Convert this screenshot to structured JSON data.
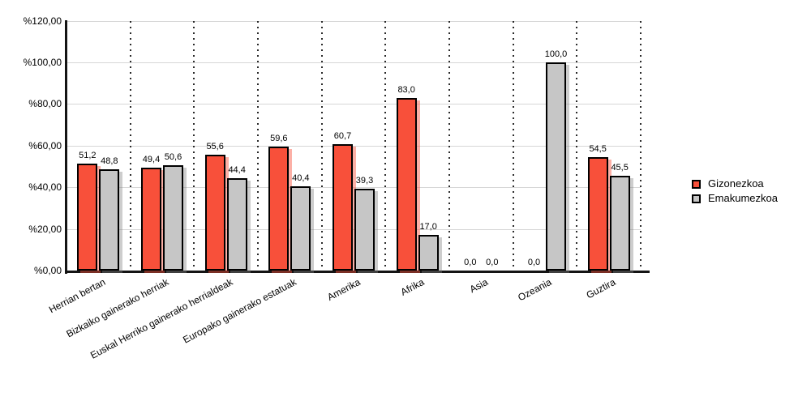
{
  "chart_data": {
    "type": "bar",
    "title": "",
    "xlabel": "",
    "ylabel": "",
    "categories": [
      "Herrian bertan",
      "Bizkaiko gainerako herriak",
      "Euskal Herriko gainerako herrialdeak",
      "Europako gainerako estatuak",
      "Amerika",
      "Afrika",
      "Asia",
      "Ozeania",
      "Guztira"
    ],
    "series": [
      {
        "name": "Gizonezkoa",
        "color": "#f8503a",
        "shadow_color": "rgba(248,80,58,0.45)",
        "values": [
          51.2,
          49.4,
          55.6,
          59.6,
          60.7,
          83.0,
          0.0,
          0.0,
          54.5
        ],
        "labels": [
          "51,2",
          "49,4",
          "55,6",
          "59,6",
          "60,7",
          "83,0",
          "0,0",
          "0,0",
          "54,5"
        ]
      },
      {
        "name": "Emakumezkoa",
        "color": "#c6c6c6",
        "shadow_color": "rgba(130,130,130,0.4)",
        "values": [
          48.8,
          50.6,
          44.4,
          40.4,
          39.3,
          17.0,
          0.0,
          100.0,
          45.5
        ],
        "labels": [
          "48,8",
          "50,6",
          "44,4",
          "40,4",
          "39,3",
          "17,0",
          "0,0",
          "100,0",
          "45,5"
        ]
      }
    ],
    "ylim": [
      0,
      120
    ],
    "y_ticks": [
      {
        "value": 0,
        "label": "%0,00"
      },
      {
        "value": 20,
        "label": "%20,00"
      },
      {
        "value": 40,
        "label": "%40,00"
      },
      {
        "value": 60,
        "label": "%60,00"
      },
      {
        "value": 80,
        "label": "%80,00"
      },
      {
        "value": 100,
        "label": "%100,00"
      },
      {
        "value": 120,
        "label": "%120,00"
      }
    ],
    "grid": true,
    "legend_position": "right",
    "colors": {
      "axis": "#141414",
      "gridline": "#d6d6d6",
      "separator_dots": "#2b2b2b",
      "background": "#ffffff",
      "text": "#000000"
    }
  }
}
